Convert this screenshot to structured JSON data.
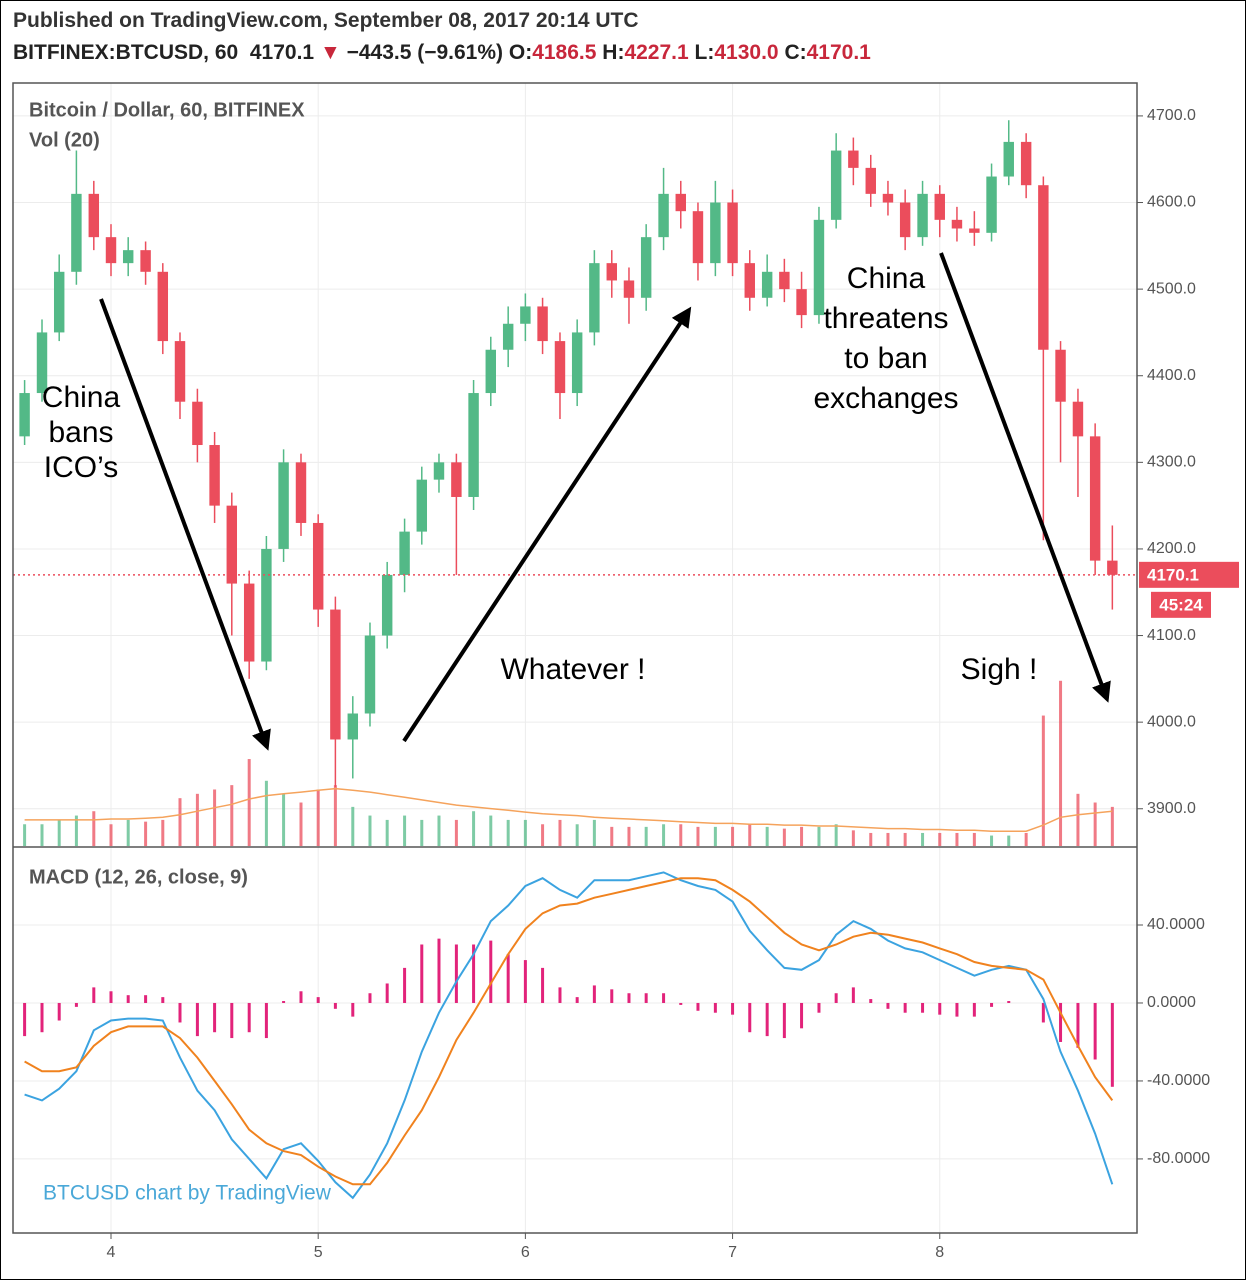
{
  "header": {
    "published": "Published on TradingView.com, September 08, 2017 20:14 UTC",
    "symbol": "BITFINEX:BTCUSD, 60",
    "last": "4170.1",
    "change": "−443.5 (−9.61%)",
    "o_label": "O:",
    "o": "4186.5",
    "h_label": "H:",
    "h": "4227.1",
    "l_label": "L:",
    "l": "4130.0",
    "c_label": "C:",
    "c": "4170.1"
  },
  "chart_data": {
    "type": "candlestick",
    "title": "Bitcoin / Dollar, 60, BITFINEX",
    "watermark": "BTCUSD chart by TradingView",
    "up_color": "#53b987",
    "down_color": "#eb4d5c",
    "grid": true,
    "x": [
      3.583,
      3.667,
      3.75,
      3.833,
      3.917,
      4.0,
      4.083,
      4.167,
      4.25,
      4.333,
      4.417,
      4.5,
      4.583,
      4.667,
      4.75,
      4.833,
      4.917,
      5.0,
      5.083,
      5.167,
      5.25,
      5.333,
      5.417,
      5.5,
      5.583,
      5.667,
      5.75,
      5.833,
      5.917,
      6.0,
      6.083,
      6.167,
      6.25,
      6.333,
      6.417,
      6.5,
      6.583,
      6.667,
      6.75,
      6.833,
      6.917,
      7.0,
      7.083,
      7.167,
      7.25,
      7.333,
      7.417,
      7.5,
      7.583,
      7.667,
      7.75,
      7.833,
      7.917,
      8.0,
      8.083,
      8.167,
      8.25,
      8.333,
      8.417,
      8.5,
      8.583,
      8.667,
      8.75,
      8.833
    ],
    "open": [
      4330,
      4380,
      4450,
      4520,
      4610,
      4560,
      4530,
      4545,
      4520,
      4440,
      4370,
      4320,
      4250,
      4160,
      4070,
      4200,
      4300,
      4230,
      4130,
      3980,
      4010,
      4100,
      4170,
      4220,
      4280,
      4300,
      4260,
      4380,
      4430,
      4460,
      4480,
      4440,
      4380,
      4450,
      4530,
      4510,
      4490,
      4560,
      4610,
      4590,
      4530,
      4600,
      4530,
      4490,
      4520,
      4500,
      4470,
      4580,
      4660,
      4640,
      4610,
      4600,
      4560,
      4610,
      4580,
      4570,
      4565,
      4630,
      4670,
      4620,
      4430,
      4370,
      4330,
      4186.5
    ],
    "high": [
      4395,
      4465,
      4540,
      4660,
      4625,
      4575,
      4560,
      4555,
      4530,
      4450,
      4385,
      4335,
      4265,
      4175,
      4215,
      4315,
      4310,
      4240,
      4145,
      4030,
      4115,
      4185,
      4235,
      4295,
      4310,
      4310,
      4395,
      4445,
      4480,
      4495,
      4490,
      4450,
      4465,
      4545,
      4545,
      4525,
      4575,
      4640,
      4625,
      4600,
      4625,
      4615,
      4545,
      4540,
      4535,
      4520,
      4595,
      4680,
      4675,
      4655,
      4625,
      4615,
      4625,
      4620,
      4595,
      4590,
      4645,
      4695,
      4680,
      4630,
      4440,
      4385,
      4345,
      4227.1
    ],
    "low": [
      4320,
      4370,
      4440,
      4505,
      4545,
      4515,
      4515,
      4505,
      4425,
      4350,
      4300,
      4230,
      4100,
      4050,
      4060,
      4185,
      4215,
      4110,
      3925,
      3935,
      3995,
      4085,
      4150,
      4205,
      4265,
      4170,
      4245,
      4365,
      4410,
      4440,
      4425,
      4350,
      4365,
      4435,
      4490,
      4460,
      4475,
      4545,
      4570,
      4510,
      4515,
      4515,
      4475,
      4480,
      4485,
      4455,
      4460,
      4570,
      4620,
      4595,
      4585,
      4545,
      4550,
      4560,
      4555,
      4550,
      4555,
      4620,
      4605,
      4210,
      4300,
      4260,
      4170,
      4130
    ],
    "close": [
      4380,
      4450,
      4520,
      4610,
      4560,
      4530,
      4545,
      4520,
      4440,
      4370,
      4320,
      4250,
      4160,
      4070,
      4200,
      4300,
      4230,
      4130,
      3980,
      4010,
      4100,
      4170,
      4220,
      4280,
      4300,
      4260,
      4380,
      4430,
      4460,
      4480,
      4440,
      4380,
      4450,
      4530,
      4510,
      4490,
      4560,
      4610,
      4590,
      4530,
      4600,
      4530,
      4490,
      4520,
      4500,
      4470,
      4580,
      4660,
      4640,
      4610,
      4600,
      4560,
      4610,
      4580,
      4570,
      4565,
      4630,
      4670,
      4620,
      4430,
      4370,
      4330,
      4186.5,
      4170.1
    ],
    "xlim": [
      3.527,
      8.952
    ],
    "xticks": [
      4,
      5,
      6,
      7,
      8
    ],
    "ylim": [
      3857,
      4738
    ],
    "yticks": [
      {
        "value": 3900,
        "label": "3900.0"
      },
      {
        "value": 4000,
        "label": "4000.0"
      },
      {
        "value": 4100,
        "label": "4100.0"
      },
      {
        "value": 4200,
        "label": "4200.0"
      },
      {
        "value": 4300,
        "label": "4300.0"
      },
      {
        "value": 4400,
        "label": "4400.0"
      },
      {
        "value": 4500,
        "label": "4500.0"
      },
      {
        "value": 4600,
        "label": "4600.0"
      },
      {
        "value": 4700,
        "label": "4700.0"
      }
    ],
    "countdown": "45:24",
    "volume": {
      "title": "Vol (20)",
      "ylim": [
        0,
        230
      ],
      "values": [
        25,
        25,
        30,
        35,
        40,
        25,
        30,
        28,
        30,
        55,
        60,
        65,
        70,
        100,
        75,
        60,
        50,
        65,
        70,
        45,
        35,
        30,
        35,
        30,
        35,
        30,
        40,
        35,
        30,
        30,
        25,
        30,
        25,
        30,
        22,
        22,
        22,
        25,
        25,
        22,
        22,
        22,
        25,
        22,
        20,
        22,
        22,
        25,
        18,
        15,
        15,
        15,
        15,
        15,
        15,
        15,
        12,
        12,
        15,
        150,
        190,
        60,
        50,
        45
      ],
      "ma": {
        "color": "#f5a35c",
        "values": [
          30,
          30,
          30,
          30,
          30,
          31,
          31,
          32,
          33,
          36,
          40,
          44,
          48,
          54,
          58,
          60,
          62,
          64,
          66,
          64,
          62,
          59,
          56,
          53,
          50,
          47,
          45,
          43,
          41,
          39,
          37,
          36,
          35,
          33,
          32,
          31,
          30,
          29,
          28,
          27,
          26,
          26,
          25,
          25,
          24,
          24,
          23,
          23,
          22,
          21,
          20,
          20,
          19,
          19,
          18,
          18,
          17,
          17,
          17,
          24,
          33,
          36,
          38,
          40
        ]
      }
    },
    "macd": {
      "title": "MACD (12, 26, close, 9)",
      "ylim": [
        -118,
        79.5
      ],
      "yticks": [
        {
          "value": -80,
          "label": "-80.0000"
        },
        {
          "value": -40,
          "label": "-40.0000"
        },
        {
          "value": 0,
          "label": "0.0000"
        },
        {
          "value": 40,
          "label": "40.0000"
        }
      ],
      "macd_line": {
        "color": "#3ba3e0",
        "values": [
          -47,
          -50,
          -44,
          -35,
          -14,
          -9,
          -8,
          -8,
          -9,
          -28,
          -45,
          -55,
          -70,
          -80,
          -90,
          -75,
          -72,
          -81,
          -92,
          -100,
          -88,
          -72,
          -50,
          -25,
          -5,
          11,
          25,
          42,
          50,
          60,
          64,
          58,
          54,
          63,
          63,
          63,
          65,
          67,
          63,
          60,
          58,
          52,
          37,
          27,
          18,
          17,
          22,
          35,
          42,
          38,
          32,
          28,
          26,
          22,
          18,
          14,
          17,
          19,
          17,
          2,
          -25,
          -45,
          -67,
          -93
        ]
      },
      "signal_line": {
        "color": "#f0821e",
        "values": [
          -30,
          -35,
          -35,
          -33,
          -22,
          -15,
          -12,
          -12,
          -12,
          -18,
          -28,
          -40,
          -52,
          -65,
          -72,
          -76,
          -78,
          -84,
          -89,
          -93,
          -93,
          -82,
          -68,
          -55,
          -38,
          -19,
          -5,
          10,
          25,
          38,
          46,
          50,
          51,
          54,
          56,
          58,
          60,
          62,
          64,
          64,
          63,
          58,
          52,
          44,
          36,
          30,
          27,
          30,
          34,
          36,
          35,
          33,
          31,
          28,
          25,
          21,
          19,
          18,
          17,
          12,
          -5,
          -22,
          -38,
          -50
        ]
      },
      "histogram": {
        "color": "#e2237a",
        "values": [
          -17,
          -15,
          -9,
          -2,
          8,
          6,
          4,
          4,
          3,
          -10,
          -17,
          -15,
          -18,
          -15,
          -18,
          1,
          6,
          3,
          -3,
          -7,
          5,
          10,
          18,
          30,
          33,
          30,
          30,
          32,
          25,
          22,
          18,
          8,
          3,
          9,
          7,
          5,
          5,
          5,
          -1,
          -4,
          -5,
          -6,
          -15,
          -17,
          -18,
          -13,
          -5,
          5,
          8,
          2,
          -3,
          -5,
          -5,
          -6,
          -7,
          -7,
          -2,
          1,
          0,
          -10,
          -20,
          -23,
          -29,
          -43
        ]
      }
    },
    "annotations": [
      {
        "lines": [
          "China",
          "bans",
          "ICO’s"
        ]
      },
      {
        "lines": [
          "Whatever !"
        ]
      },
      {
        "lines": [
          "China",
          "threatens",
          "to ban",
          "exchanges"
        ]
      },
      {
        "lines": [
          "Sigh !"
        ]
      }
    ]
  }
}
